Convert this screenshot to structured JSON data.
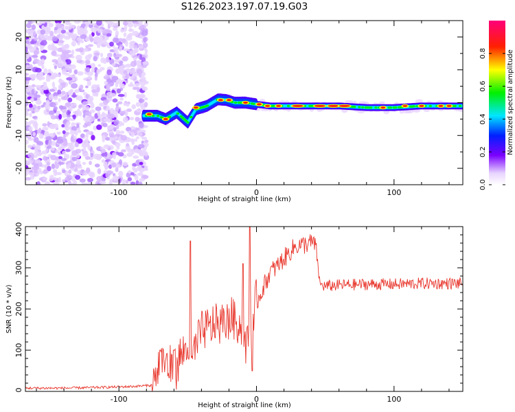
{
  "title": "S126.2023.197.07.19.G03",
  "chart_data": [
    {
      "type": "heatmap",
      "title": "S126.2023.197.07.19.G03",
      "xlabel": "Height of straight line (km)",
      "ylabel": "Frequency (Hz)",
      "xlim": [
        -168,
        150
      ],
      "ylim": [
        -25,
        25
      ],
      "xticks": [
        "-100",
        "0",
        "100"
      ],
      "xtick_values": [
        -100,
        0,
        100
      ],
      "yticks": [
        "20",
        "10",
        "0",
        "-10",
        "-20"
      ],
      "ytick_values": [
        20,
        10,
        0,
        -10,
        -20
      ],
      "colorbar": {
        "label": "Normalized spectral amplitude",
        "range": [
          0,
          1
        ],
        "ticks": [
          "0.0",
          "0.2",
          "0.4",
          "0.6",
          "0.8"
        ],
        "tick_values": [
          0.0,
          0.2,
          0.4,
          0.6,
          0.8
        ]
      },
      "features": [
        {
          "name": "noise",
          "x_range": [
            -168,
            -80
          ],
          "freq_range": [
            -25,
            25
          ],
          "amplitude": 0.15
        },
        {
          "name": "ridge",
          "points": [
            [
              -82,
              -4
            ],
            [
              -72,
              -4
            ],
            [
              -66,
              -5
            ],
            [
              -58,
              -3
            ],
            [
              -50,
              -6
            ],
            [
              -44,
              -2
            ],
            [
              -36,
              -1
            ],
            [
              -28,
              1
            ],
            [
              -22,
              0.8
            ],
            [
              -16,
              0
            ],
            [
              -8,
              0
            ],
            [
              0,
              -0.5
            ],
            [
              10,
              -1
            ],
            [
              30,
              -1
            ],
            [
              60,
              -1
            ],
            [
              80,
              -1.5
            ],
            [
              100,
              -1.5
            ],
            [
              120,
              -1
            ],
            [
              150,
              -1
            ]
          ]
        },
        {
          "name": "peaks",
          "points": [
            [
              -78,
              -3.5
            ],
            [
              -66,
              -5
            ],
            [
              -44,
              -1.5
            ],
            [
              -26,
              0.8
            ],
            [
              -20,
              0.8
            ],
            [
              -8,
              0
            ],
            [
              2,
              -0.5
            ],
            [
              8,
              -1
            ],
            [
              16,
              -1
            ],
            [
              30,
              -1
            ],
            [
              46,
              -1
            ],
            [
              56,
              -1
            ],
            [
              64,
              -1
            ],
            [
              92,
              -1.5
            ],
            [
              108,
              -1
            ],
            [
              120,
              -1
            ],
            [
              134,
              -1
            ],
            [
              140,
              -1
            ]
          ]
        }
      ]
    },
    {
      "type": "line",
      "xlabel": "Height of straight line (km)",
      "ylabel": "SNR (10 * v/v)",
      "xlim": [
        -168,
        150
      ],
      "ylim": [
        0,
        400
      ],
      "xticks": [
        "-100",
        "0",
        "100"
      ],
      "xtick_values": [
        -100,
        0,
        100
      ],
      "yticks": [
        "0",
        "100",
        "200",
        "300",
        "400"
      ],
      "ytick_values": [
        0,
        100,
        200,
        300,
        400
      ],
      "series": [
        {
          "name": "SNR",
          "color": "#e8352b",
          "x": [
            -168,
            -140,
            -110,
            -90,
            -76,
            -72,
            -68,
            -64,
            -60,
            -56,
            -52,
            -50,
            -48,
            -46,
            -42,
            -38,
            -34,
            -30,
            -26,
            -22,
            -18,
            -14,
            -10,
            -8,
            -6,
            -2,
            2,
            6,
            10,
            14,
            18,
            22,
            26,
            30,
            34,
            38,
            42,
            44,
            46,
            50,
            60,
            80,
            100,
            120,
            150
          ],
          "y": [
            8,
            8,
            10,
            12,
            15,
            50,
            80,
            60,
            50,
            80,
            100,
            120,
            60,
            90,
            130,
            150,
            150,
            170,
            160,
            170,
            180,
            170,
            150,
            110,
            120,
            200,
            230,
            260,
            290,
            300,
            315,
            330,
            345,
            355,
            355,
            360,
            360,
            330,
            260,
            255,
            258,
            260,
            260,
            262,
            262
          ],
          "spikes": [
            [
              -70,
              100
            ],
            [
              -60,
              100
            ],
            [
              -48,
              365
            ],
            [
              -10,
              310
            ],
            [
              -5,
              400
            ],
            [
              -3,
              50
            ]
          ]
        }
      ]
    }
  ]
}
